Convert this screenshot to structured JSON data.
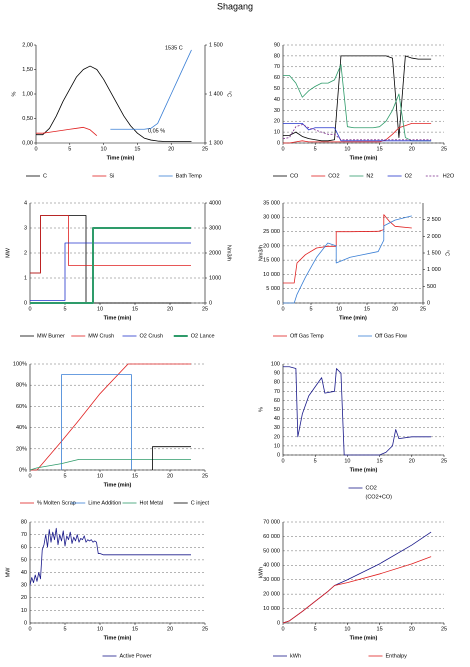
{
  "page_title": "Shagang",
  "chart_data": [
    {
      "type": "line",
      "ylabel": "%",
      "y2label": "°C",
      "xlabel": "Time (min)",
      "grid": false,
      "annotations": [
        "0,05 %",
        "1535 C"
      ],
      "xlim": [
        0,
        25
      ],
      "xticks": [
        0,
        5,
        10,
        15,
        20,
        25
      ],
      "ylim": [
        0,
        2
      ],
      "yticks": [
        {
          "value": 0,
          "label": "0,00"
        },
        {
          "value": 0.5,
          "label": "0,50"
        },
        {
          "value": 1,
          "label": "1,00"
        },
        {
          "value": 1.5,
          "label": "1,50"
        },
        {
          "value": 2,
          "label": "2,00"
        }
      ],
      "y2lim": [
        1300,
        1500
      ],
      "y2ticks": [
        {
          "value": 1300,
          "label": "1 300"
        },
        {
          "value": 1400,
          "label": "1 400"
        },
        {
          "value": 1500,
          "label": "1 500"
        }
      ],
      "x": [
        0,
        1,
        2,
        3,
        4,
        5,
        6,
        7,
        8,
        9,
        10,
        11,
        12,
        13,
        14,
        15,
        16,
        17,
        18,
        19,
        20,
        21,
        22,
        23
      ],
      "series": [
        {
          "name": "C",
          "color": "#000000",
          "values": [
            0.17,
            0.17,
            0.3,
            0.55,
            0.85,
            1.1,
            1.35,
            1.5,
            1.57,
            1.5,
            1.3,
            1.05,
            0.8,
            0.55,
            0.35,
            0.2,
            0.1,
            0.06,
            0.04,
            0.03,
            0.03,
            0.03,
            0.03,
            0.03
          ]
        },
        {
          "name": "Si",
          "color": "#e02020",
          "values": [
            0.2,
            0.2,
            0.22,
            0.24,
            0.26,
            0.28,
            0.3,
            0.32,
            0.27,
            0.15,
            null,
            null,
            null,
            null,
            null,
            null,
            null,
            null,
            null,
            null,
            null,
            null,
            null,
            null
          ]
        },
        {
          "name": "Bath Temp",
          "color": "#3a7fd5",
          "axis": "y2",
          "values": [
            null,
            null,
            null,
            null,
            null,
            null,
            null,
            null,
            null,
            null,
            null,
            1328,
            1328,
            1328,
            1328,
            1328,
            1328,
            1330,
            1340,
            1370,
            1400,
            1430,
            1460,
            1490
          ]
        }
      ]
    },
    {
      "type": "line",
      "xlabel": "Time (min)",
      "grid": true,
      "xlim": [
        0,
        25
      ],
      "xticks": [
        0,
        5,
        10,
        15,
        20,
        25
      ],
      "ylim": [
        0,
        90
      ],
      "yticks": [
        0,
        10,
        20,
        30,
        40,
        50,
        60,
        70,
        80,
        90
      ],
      "x": [
        0,
        1,
        2,
        3,
        4,
        5,
        6,
        7,
        8,
        9,
        10,
        11,
        12,
        13,
        14,
        15,
        16,
        17,
        18,
        19,
        20,
        21,
        22,
        23
      ],
      "series": [
        {
          "name": "CO",
          "color": "#000000",
          "values": [
            7,
            7,
            10,
            6,
            4,
            3,
            2,
            2,
            3,
            80,
            80,
            80,
            80,
            80,
            80,
            80,
            80,
            78,
            5,
            80,
            78,
            77,
            77,
            77
          ]
        },
        {
          "name": "CO2",
          "color": "#e02020",
          "values": [
            0,
            0,
            1,
            2,
            1,
            1,
            1,
            1,
            1,
            1,
            1,
            1,
            1,
            1,
            1,
            1,
            3,
            8,
            14,
            16,
            18,
            18,
            18,
            18
          ]
        },
        {
          "name": "N2",
          "color": "#2e9b6a",
          "values": [
            62,
            62,
            55,
            42,
            48,
            52,
            55,
            55,
            58,
            72,
            15,
            14,
            14,
            14,
            14,
            15,
            20,
            30,
            45,
            5,
            2,
            2,
            2,
            2
          ]
        },
        {
          "name": "O2",
          "color": "#2233cc",
          "values": [
            18,
            18,
            18,
            18,
            12,
            14,
            14,
            14,
            14,
            2,
            2,
            2,
            2,
            2,
            2,
            2,
            2,
            2,
            2,
            2,
            2,
            2,
            2,
            2
          ]
        },
        {
          "name": "H2O",
          "color": "#7a2a8a",
          "dash": true,
          "values": [
            4,
            5,
            15,
            17,
            14,
            12,
            10,
            8,
            8,
            3,
            3,
            3,
            3,
            3,
            3,
            3,
            3,
            3,
            3,
            3,
            3,
            3,
            3,
            3
          ]
        }
      ]
    },
    {
      "type": "line",
      "ylabel": "MW",
      "y2label": "Nm3/h",
      "xlabel": "Time (min)",
      "grid": true,
      "xlim": [
        0,
        25
      ],
      "xticks": [
        0,
        5,
        10,
        15,
        20,
        25
      ],
      "ylim": [
        0,
        4
      ],
      "yticks": [
        0,
        1,
        2,
        3,
        4
      ],
      "y2lim": [
        0,
        4000
      ],
      "y2ticks": [
        0,
        1000,
        2000,
        3000,
        4000
      ],
      "x": [
        0,
        1.5,
        1.5,
        2.5,
        2.5,
        5,
        5,
        5.5,
        5.5,
        8,
        8,
        9,
        9,
        23
      ],
      "series": [
        {
          "name": "MW Burner",
          "color": "#000000",
          "values": [
            1.2,
            1.2,
            3.5,
            3.5,
            3.5,
            3.5,
            3.5,
            3.5,
            3.5,
            3.5,
            0,
            0,
            0,
            0
          ]
        },
        {
          "name": "MW Crush",
          "color": "#e02020",
          "values": [
            1.2,
            1.2,
            3.5,
            3.5,
            3.5,
            3.5,
            3.5,
            3.5,
            1.5,
            1.5,
            1.5,
            1.5,
            1.5,
            1.5
          ]
        },
        {
          "name": "O2 Crush",
          "color": "#2233cc",
          "axis": "y2",
          "values": [
            100,
            100,
            100,
            100,
            100,
            100,
            2400,
            2400,
            2400,
            2400,
            2400,
            2400,
            2400,
            2400
          ]
        },
        {
          "name": "O2 Lance",
          "color": "#2e9b6a",
          "axis": "y2",
          "width": 2,
          "values": [
            0,
            0,
            0,
            0,
            0,
            0,
            0,
            0,
            0,
            0,
            0,
            0,
            3000,
            3000
          ]
        }
      ]
    },
    {
      "type": "line",
      "ylabel": "Nm3/h",
      "y2label": "°C",
      "xlabel": "Time (min)",
      "grid": true,
      "xlim": [
        0,
        25
      ],
      "xticks": [
        0,
        5,
        10,
        15,
        20,
        25
      ],
      "ylim": [
        0,
        35000
      ],
      "yticks": [
        0,
        {
          "value": 5000,
          "label": "5 000"
        },
        {
          "value": 10000,
          "label": "10 000"
        },
        {
          "value": 15000,
          "label": "15 000"
        },
        {
          "value": 20000,
          "label": "20 000"
        },
        {
          "value": 25000,
          "label": "25 000"
        },
        {
          "value": 30000,
          "label": "30 000"
        },
        {
          "value": 35000,
          "label": "35 000"
        }
      ],
      "y2lim": [
        0,
        3000
      ],
      "y2ticks": [
        0,
        500,
        {
          "value": 1000,
          "label": "1 000"
        },
        {
          "value": 1500,
          "label": "1 500"
        },
        {
          "value": 2000,
          "label": "2 000"
        },
        {
          "value": 2500,
          "label": "2 500"
        }
      ],
      "x": [
        0,
        2,
        2.5,
        4,
        6,
        8,
        9.5,
        9.5,
        12,
        17,
        18,
        18,
        19,
        20,
        23
      ],
      "series": [
        {
          "name": "Off Gas Temp",
          "color": "#e02020",
          "axis": "y2",
          "values": [
            600,
            600,
            1200,
            1450,
            1650,
            1700,
            1700,
            2140,
            2140,
            2150,
            2200,
            2650,
            2450,
            2300,
            2250
          ]
        },
        {
          "name": "Off Gas Flow",
          "color": "#3a7fd5",
          "values": [
            0,
            0,
            3000,
            9000,
            16000,
            21000,
            20000,
            14000,
            16000,
            18000,
            22000,
            27000,
            28000,
            29000,
            30500
          ]
        }
      ]
    },
    {
      "type": "line",
      "xlabel": "Time (min)",
      "grid": true,
      "xlim": [
        0,
        25
      ],
      "xticks": [
        0,
        5,
        10,
        15,
        20,
        25
      ],
      "ylim": [
        0,
        100
      ],
      "yticks": [
        {
          "value": 0,
          "label": "0%"
        },
        {
          "value": 20,
          "label": "20%"
        },
        {
          "value": 40,
          "label": "40%"
        },
        {
          "value": 60,
          "label": "60%"
        },
        {
          "value": 80,
          "label": "80%"
        },
        {
          "value": 100,
          "label": "100%"
        }
      ],
      "x": [
        0,
        1,
        4.5,
        4.5,
        7,
        10,
        14,
        14.5,
        14.5,
        17.5,
        17.5,
        23
      ],
      "series": [
        {
          "name": "% Molten Scrap",
          "color": "#e02020",
          "values": [
            0,
            0,
            27,
            27,
            47,
            72,
            100,
            100,
            100,
            100,
            100,
            100
          ]
        },
        {
          "name": "Lime Addition",
          "color": "#3a7fd5",
          "values": [
            null,
            null,
            0,
            90,
            90,
            90,
            90,
            90,
            0,
            null,
            null,
            null
          ]
        },
        {
          "name": "Hot Metal",
          "color": "#2e9b6a",
          "values": [
            0,
            2,
            6,
            6,
            10,
            10,
            10,
            10,
            10,
            10,
            10,
            10
          ]
        },
        {
          "name": "C inject",
          "color": "#000000",
          "values": [
            null,
            null,
            null,
            null,
            null,
            null,
            null,
            null,
            null,
            0,
            22,
            22
          ]
        }
      ]
    },
    {
      "type": "line",
      "ylabel": "%",
      "xlabel": "Time (min)",
      "grid": true,
      "legend_note": "(CO2+CO)",
      "xlim": [
        0,
        25
      ],
      "xticks": [
        0,
        5,
        10,
        15,
        20,
        25
      ],
      "ylim": [
        0,
        100
      ],
      "yticks": [
        0,
        10,
        20,
        30,
        40,
        50,
        60,
        70,
        80,
        90,
        100
      ],
      "x": [
        0,
        1,
        2,
        2.3,
        3,
        4,
        5,
        6,
        6.5,
        8,
        8.3,
        9,
        9.5,
        15,
        16,
        17,
        17.5,
        18,
        20,
        23
      ],
      "series": [
        {
          "name": "CO2",
          "color": "#1a1a8a",
          "values": [
            97,
            97,
            95,
            20,
            45,
            65,
            75,
            85,
            68,
            70,
            95,
            90,
            0,
            0,
            3,
            10,
            28,
            18,
            20,
            20
          ]
        }
      ]
    },
    {
      "type": "line",
      "ylabel": "MW",
      "xlabel": "Time (min)",
      "grid": true,
      "xlim": [
        0,
        25
      ],
      "xticks": [
        0,
        5,
        10,
        15,
        20,
        25
      ],
      "ylim": [
        0,
        80
      ],
      "yticks": [
        0,
        10,
        20,
        30,
        40,
        50,
        60,
        70,
        80
      ],
      "x": [
        0,
        0.25,
        0.5,
        0.75,
        1,
        1.25,
        1.5,
        1.75,
        2,
        2.25,
        2.5,
        2.75,
        3,
        3.25,
        3.5,
        3.75,
        4,
        4.25,
        4.5,
        4.75,
        5,
        5.25,
        5.5,
        5.75,
        6,
        6.25,
        6.5,
        6.75,
        7,
        7.25,
        7.5,
        7.75,
        8,
        8.25,
        8.5,
        8.75,
        9,
        9.25,
        9.5,
        9.75,
        10,
        10.5,
        23
      ],
      "series": [
        {
          "name": "Active Power",
          "color": "#1a1a8a",
          "values": [
            30,
            36,
            32,
            38,
            33,
            40,
            35,
            58,
            62,
            70,
            60,
            74,
            64,
            72,
            66,
            75,
            62,
            70,
            65,
            73,
            61,
            69,
            66,
            72,
            63,
            68,
            65,
            70,
            64,
            67,
            66,
            69,
            64,
            66,
            65,
            66,
            64,
            65,
            64,
            55,
            55,
            54,
            54
          ]
        }
      ]
    },
    {
      "type": "line",
      "ylabel": "kWh",
      "xlabel": "Time (min)",
      "grid": true,
      "xlim": [
        0,
        25
      ],
      "xticks": [
        0,
        5,
        10,
        15,
        20,
        25
      ],
      "ylim": [
        0,
        70000
      ],
      "yticks": [
        0,
        {
          "value": 10000,
          "label": "10 000"
        },
        {
          "value": 20000,
          "label": "20 000"
        },
        {
          "value": 30000,
          "label": "30 000"
        },
        {
          "value": 40000,
          "label": "40 000"
        },
        {
          "value": 50000,
          "label": "50 000"
        },
        {
          "value": 60000,
          "label": "60 000"
        },
        {
          "value": 70000,
          "label": "70 000"
        }
      ],
      "x": [
        0,
        1,
        3,
        5,
        7,
        8,
        10,
        15,
        20,
        23
      ],
      "series": [
        {
          "name": "kWh",
          "color": "#1a1a8a",
          "values": [
            0,
            1500,
            8000,
            15000,
            22000,
            26000,
            30000,
            41000,
            54000,
            63000
          ]
        },
        {
          "name": "Enthalpy",
          "color": "#e02020",
          "values": [
            0,
            1500,
            8000,
            15000,
            22000,
            26000,
            28000,
            34000,
            41000,
            46000
          ]
        }
      ]
    }
  ]
}
